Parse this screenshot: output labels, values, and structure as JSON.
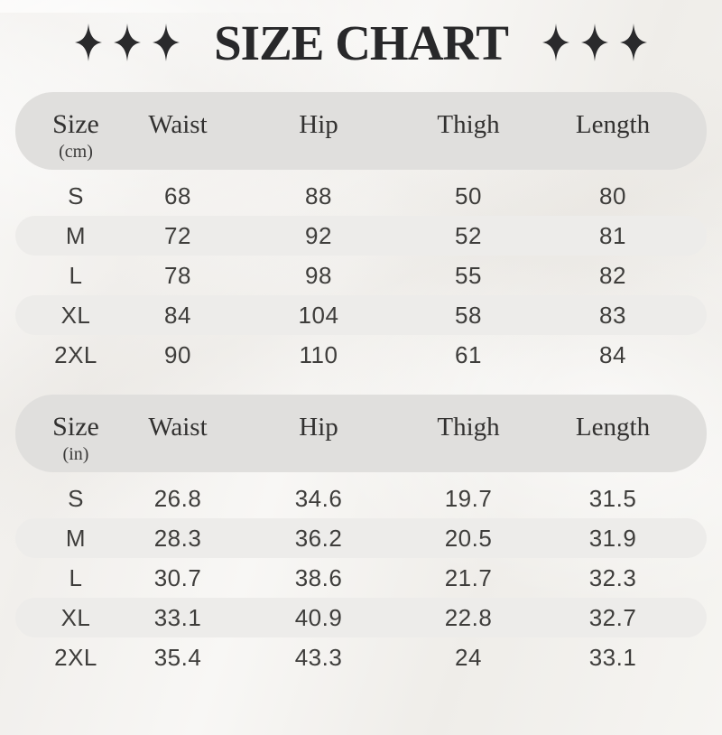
{
  "header": {
    "title": "SIZE CHART",
    "sparkles_per_side": 3,
    "sparkle_icon": "four-pointed-sparkle"
  },
  "colors": {
    "background": "#f5f4f1",
    "header_pill": "#e0dfdd",
    "alt_row_pill": "#edecea",
    "title_text": "#28282a",
    "data_text": "#3e3d3b"
  },
  "chart_data": [
    {
      "type": "table",
      "unit": "cm",
      "size_column": {
        "label": "Size",
        "unit": "(cm)"
      },
      "columns": [
        "Waist",
        "Hip",
        "Thigh",
        "Length"
      ],
      "rows": [
        {
          "size": "S",
          "values": [
            "68",
            "88",
            "50",
            "80"
          ]
        },
        {
          "size": "M",
          "values": [
            "72",
            "92",
            "52",
            "81"
          ]
        },
        {
          "size": "L",
          "values": [
            "78",
            "98",
            "55",
            "82"
          ]
        },
        {
          "size": "XL",
          "values": [
            "84",
            "104",
            "58",
            "83"
          ]
        },
        {
          "size": "2XL",
          "values": [
            "90",
            "110",
            "61",
            "84"
          ]
        }
      ]
    },
    {
      "type": "table",
      "unit": "in",
      "size_column": {
        "label": "Size",
        "unit": "(in)"
      },
      "columns": [
        "Waist",
        "Hip",
        "Thigh",
        "Length"
      ],
      "rows": [
        {
          "size": "S",
          "values": [
            "26.8",
            "34.6",
            "19.7",
            "31.5"
          ]
        },
        {
          "size": "M",
          "values": [
            "28.3",
            "36.2",
            "20.5",
            "31.9"
          ]
        },
        {
          "size": "L",
          "values": [
            "30.7",
            "38.6",
            "21.7",
            "32.3"
          ]
        },
        {
          "size": "XL",
          "values": [
            "33.1",
            "40.9",
            "22.8",
            "32.7"
          ]
        },
        {
          "size": "2XL",
          "values": [
            "35.4",
            "43.3",
            "24",
            "33.1"
          ]
        }
      ]
    }
  ]
}
